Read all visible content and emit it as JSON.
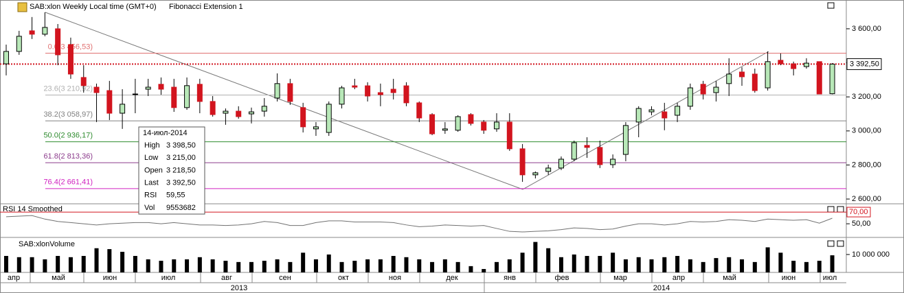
{
  "chart_data": [
    {
      "type": "candlestick",
      "title": "SAB:xlon Weekly Local time (GMT+0)",
      "subtitle": "Fibonacci Extension 1",
      "open": [
        3394,
        3467,
        3588,
        3568,
        3600,
        3507,
        3314,
        3257,
        3237,
        3104,
        3213,
        3245,
        3274,
        3257,
        3137,
        3274,
        3173,
        3104,
        3116,
        3100,
        3116,
        3193,
        3278,
        3137,
        3012,
        2991,
        3157,
        3265,
        3265,
        3225,
        3245,
        3265,
        3165,
        3096,
        3004,
        3004,
        3096,
        3052,
        3012,
        3052,
        2895,
        2742,
        2762,
        2782,
        2834,
        2915,
        2903,
        2802,
        2862,
        3052,
        3112,
        3112,
        3092,
        3145,
        3274,
        3225,
        3278,
        3346,
        3334,
        3253,
        3415,
        3394,
        3378,
        3407,
        3218.5
      ],
      "high": [
        3507,
        3588,
        3669,
        3697,
        3628,
        3548,
        3386,
        3278,
        3294,
        3245,
        3306,
        3306,
        3314,
        3306,
        3314,
        3306,
        3205,
        3132,
        3145,
        3137,
        3193,
        3338,
        3306,
        3165,
        3052,
        3173,
        3265,
        3306,
        3286,
        3278,
        3306,
        3286,
        3173,
        3104,
        3052,
        3092,
        3104,
        3064,
        3104,
        3104,
        2923,
        2762,
        2802,
        2850,
        2943,
        2963,
        2943,
        2862,
        3052,
        3145,
        3145,
        3165,
        3165,
        3278,
        3294,
        3294,
        3427,
        3374,
        3366,
        3467,
        3455,
        3407,
        3427,
        3407,
        3398.5
      ],
      "low": [
        3326,
        3447,
        3540,
        3556,
        3386,
        3306,
        3225,
        3052,
        3064,
        3012,
        3104,
        3205,
        3213,
        3112,
        3124,
        3104,
        3084,
        3036,
        3072,
        3044,
        3084,
        3173,
        3153,
        2991,
        2971,
        2971,
        3132,
        3245,
        3173,
        3145,
        3185,
        3145,
        3052,
        2975,
        2983,
        2995,
        3032,
        2983,
        2995,
        2883,
        2701,
        2721,
        2742,
        2770,
        2822,
        2842,
        2782,
        2782,
        2822,
        2963,
        3092,
        3004,
        3052,
        3124,
        3185,
        3173,
        3205,
        3265,
        3225,
        3237,
        3386,
        3326,
        3366,
        3217,
        3215
      ],
      "close": [
        3467,
        3556,
        3568,
        3608,
        3447,
        3334,
        3266,
        3225,
        3104,
        3157,
        3217,
        3257,
        3245,
        3137,
        3266,
        3173,
        3096,
        3116,
        3084,
        3112,
        3145,
        3278,
        3173,
        3024,
        3024,
        3157,
        3253,
        3257,
        3205,
        3213,
        3225,
        3165,
        3076,
        2983,
        3012,
        3084,
        3044,
        3004,
        3052,
        2895,
        2742,
        2754,
        2782,
        2834,
        2931,
        2903,
        2802,
        2834,
        3032,
        3132,
        3124,
        3076,
        3145,
        3253,
        3217,
        3257,
        3334,
        3318,
        3237,
        3407,
        3394,
        3366,
        3398,
        3217,
        3392.5
      ],
      "up_color": "#b8e8b8",
      "down_color": "#d2141e",
      "ylim": [
        2572,
        3769
      ],
      "yticks": [
        {
          "value": 3600,
          "label": "3 600,00"
        },
        {
          "value": 3400,
          "label": "3 400,00"
        },
        {
          "value": 3200,
          "label": "3 200,00"
        },
        {
          "value": 3000,
          "label": "3 000,00"
        },
        {
          "value": 2800,
          "label": "2 800,00"
        },
        {
          "value": 2600,
          "label": "2 600,00"
        }
      ],
      "last": {
        "value": 3392.5,
        "label": "3 392,50"
      },
      "fib_levels": [
        {
          "value": 3456.53,
          "label": "0.0(3 456,53)",
          "color": "#e07070"
        },
        {
          "value": 3210.92,
          "label": "23.6(3 210,92)",
          "color": "#b0b0b0"
        },
        {
          "value": 3058.97,
          "label": "38.2(3 058,97)",
          "color": "#808080"
        },
        {
          "value": 2936.17,
          "label": "50.0(2 936,17)",
          "color": "#2e8b2e"
        },
        {
          "value": 2813.36,
          "label": "61.8(2 813,36)",
          "color": "#8b3a8b"
        },
        {
          "value": 2661.41,
          "label": "76.4(2 661,41)",
          "color": "#d020c0"
        }
      ]
    },
    {
      "type": "line",
      "title": "RSI 14 Smoothed",
      "values": [
        62,
        63,
        64,
        58,
        54,
        52,
        50,
        48,
        50,
        51,
        52,
        52,
        50,
        52,
        50,
        48,
        48,
        47,
        48,
        50,
        54,
        52,
        47,
        47,
        52,
        55,
        55,
        53,
        53,
        53,
        52,
        48,
        45,
        46,
        48,
        47,
        46,
        47,
        42,
        37,
        36,
        37,
        38,
        40,
        43,
        42,
        40,
        41,
        46,
        50,
        50,
        48,
        50,
        54,
        53,
        54,
        57,
        56,
        54,
        58,
        57,
        56,
        57,
        51,
        59.55
      ],
      "color": "#707070",
      "ylim": [
        29,
        83
      ],
      "yticks": [
        {
          "value": 50,
          "label": "50,00"
        }
      ],
      "level": {
        "value": 70,
        "label": "70,00",
        "color": "#d2141e"
      }
    },
    {
      "type": "bar",
      "title": "SAB:xlonVolume",
      "values": [
        9200000,
        8500000,
        8500000,
        7300000,
        9200000,
        8500000,
        9200000,
        13500000,
        13000000,
        11500000,
        9200000,
        7300000,
        6500000,
        7300000,
        7300000,
        8500000,
        7300000,
        6500000,
        5800000,
        5800000,
        6500000,
        7300000,
        5800000,
        11000000,
        7300000,
        10000000,
        5800000,
        6500000,
        7300000,
        7300000,
        9200000,
        8500000,
        7300000,
        5800000,
        7300000,
        5800000,
        3500000,
        1900000,
        5800000,
        7300000,
        11000000,
        17000000,
        13500000,
        8500000,
        10000000,
        9200000,
        9200000,
        11000000,
        7300000,
        8500000,
        7300000,
        8500000,
        9200000,
        7300000,
        5800000,
        8000000,
        8500000,
        7300000,
        5800000,
        14000000,
        11000000,
        6500000,
        5800000,
        6500000,
        9553682
      ],
      "color": "#000000",
      "ylim": [
        0,
        18000000
      ],
      "yticks": [
        {
          "value": 10000000,
          "label": "10 000 000"
        }
      ]
    }
  ],
  "x_axis": {
    "months": [
      "апр",
      "май",
      "июн",
      "июл",
      "авг",
      "сен",
      "окт",
      "ноя",
      "дек",
      "янв",
      "фев",
      "мар",
      "апр",
      "май",
      "июн",
      "июл"
    ],
    "years": [
      "2013",
      "2014"
    ]
  },
  "tooltip": {
    "date": "14-июл-2014",
    "rows": [
      [
        "High",
        "3 398,50"
      ],
      [
        "Low",
        "3 215,00"
      ],
      [
        "Open",
        "3 218,50"
      ],
      [
        "Last",
        "3 392,50"
      ],
      [
        "RSI",
        "59,55"
      ],
      [
        "Vol",
        "9553682"
      ]
    ]
  }
}
